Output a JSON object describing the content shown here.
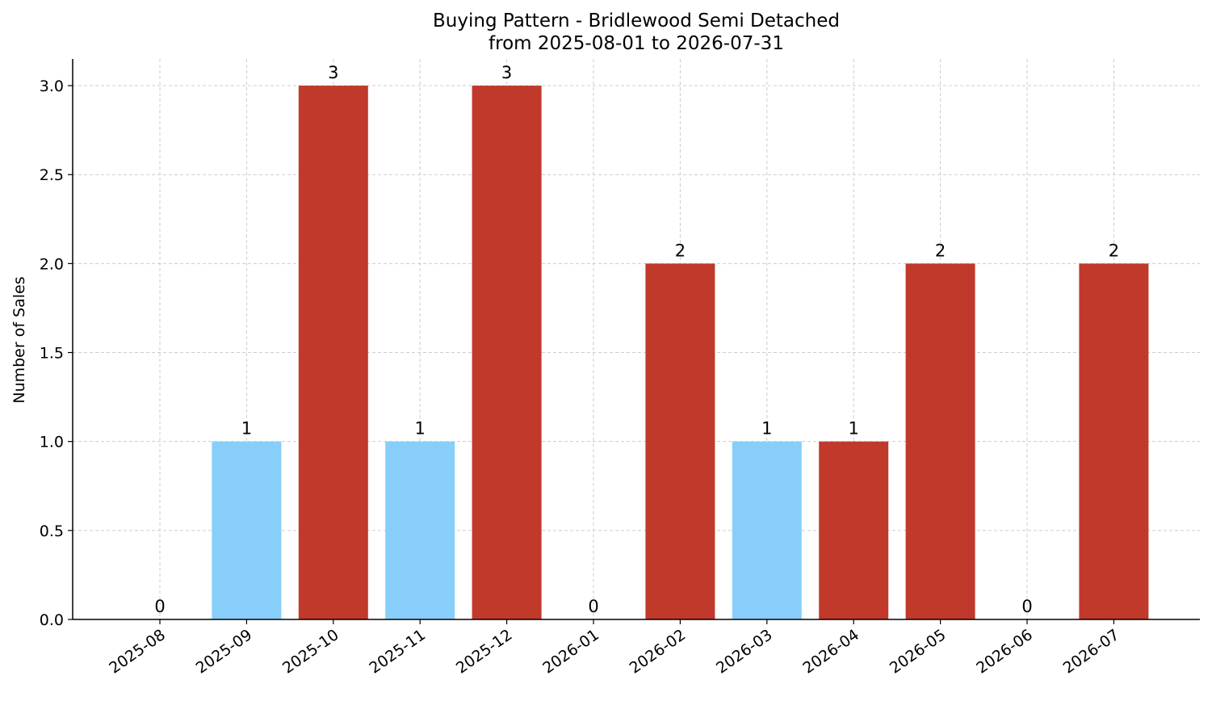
{
  "chart_data": {
    "type": "bar",
    "title": "Buying Pattern - Bridlewood Semi Detached",
    "subtitle": "from 2025-08-01 to 2026-07-31",
    "xlabel": "",
    "ylabel": "Number of Sales",
    "ylim": [
      0,
      3.15
    ],
    "yticks": [
      "0.0",
      "0.5",
      "1.0",
      "1.5",
      "2.0",
      "2.5",
      "3.0"
    ],
    "grid": true,
    "categories": [
      "2025-08",
      "2025-09",
      "2025-10",
      "2025-11",
      "2025-12",
      "2026-01",
      "2026-02",
      "2026-03",
      "2026-04",
      "2026-05",
      "2026-06",
      "2026-07"
    ],
    "values": [
      0,
      1,
      3,
      1,
      3,
      0,
      2,
      1,
      1,
      2,
      0,
      2
    ],
    "data_labels": [
      "0",
      "1",
      "3",
      "1",
      "3",
      "0",
      "2",
      "1",
      "1",
      "2",
      "0",
      "2"
    ],
    "colors": {
      "high": "#c0392b",
      "low": "#87cefa"
    },
    "bar_colors": [
      "#c0392b",
      "#87cefa",
      "#c0392b",
      "#87cefa",
      "#c0392b",
      "#c0392b",
      "#c0392b",
      "#87cefa",
      "#c0392b",
      "#c0392b",
      "#c0392b",
      "#c0392b"
    ]
  }
}
